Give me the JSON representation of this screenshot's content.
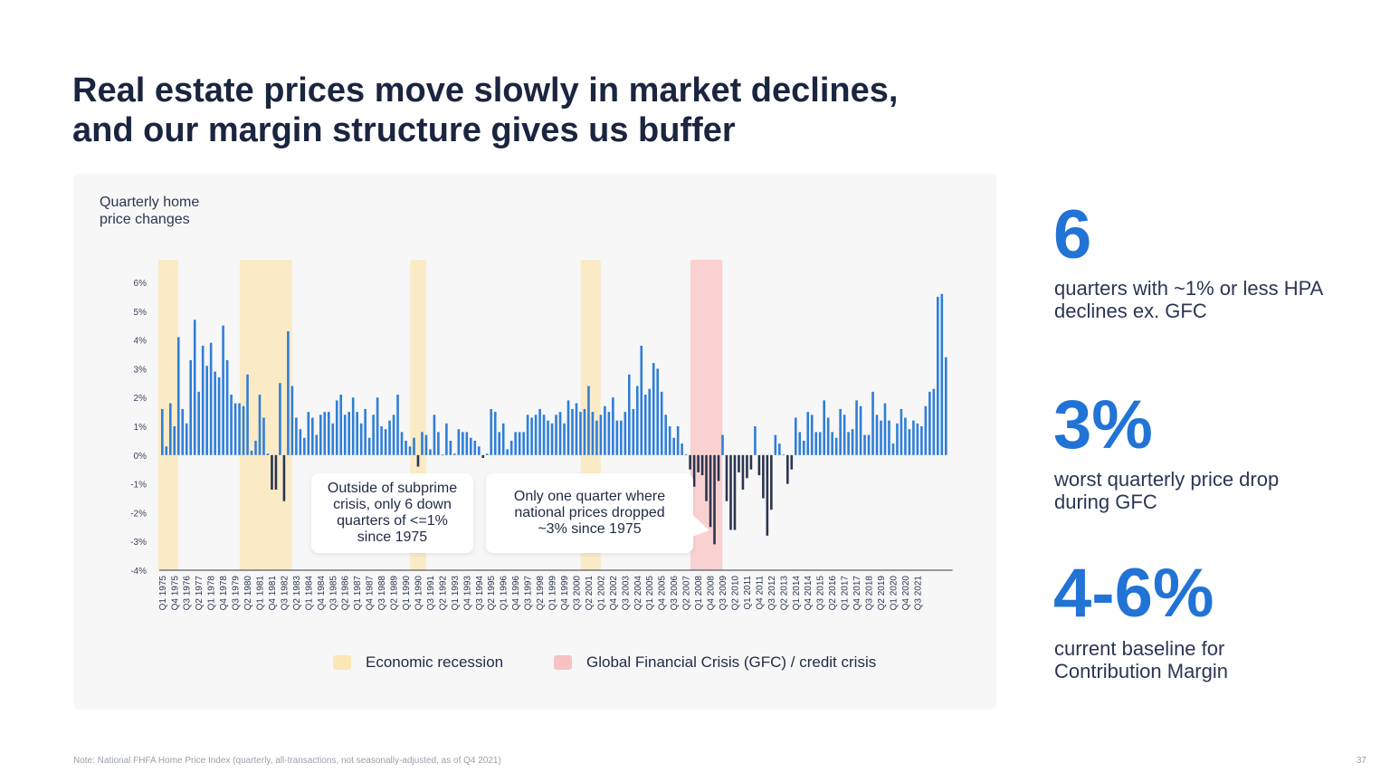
{
  "title": {
    "line1": "Real estate prices move slowly in market declines,",
    "line2": "and our margin structure gives us buffer"
  },
  "chart_title": {
    "line1": "Quarterly home",
    "line2": "price changes"
  },
  "callouts": [
    {
      "lines": [
        "Outside of subprime",
        "crisis, only 6 down",
        "quarters of <=1%",
        "since 1975"
      ]
    },
    {
      "lines": [
        "Only one quarter where",
        "national prices dropped",
        "~3% since 1975"
      ]
    }
  ],
  "legend": [
    {
      "label": "Economic recession",
      "color": "#fbe7b5"
    },
    {
      "label": "Global Financial Crisis (GFC) / credit crisis",
      "color": "#f9c1c1"
    }
  ],
  "stats": [
    {
      "value": "6",
      "lines": [
        "quarters with ~1% or less HPA",
        "declines ex. GFC"
      ]
    },
    {
      "value": "3%",
      "lines": [
        "worst quarterly price drop",
        "during GFC"
      ]
    },
    {
      "value": "4-6%",
      "lines": [
        "current baseline for",
        "Contribution Margin"
      ]
    }
  ],
  "note": "Note: National FHFA Home Price Index (quarterly, all-transactions, not seasonally-adjusted, as of Q4 2021)",
  "page_number": "37",
  "colors": {
    "positive": "#2f7ed8",
    "negative": "#2b3550",
    "recession": "#fbe7b5",
    "gfc": "#f9c1c1",
    "accent": "#2173d6"
  },
  "chart_data": {
    "type": "bar",
    "start_quarter": "Q1 1975",
    "ylim": [
      -4,
      6
    ],
    "yticks": [
      "6%",
      "5%",
      "4%",
      "3%",
      "2%",
      "1%",
      "0%",
      "-1%",
      "-2%",
      "-3%",
      "-4%"
    ],
    "tick_labels": [
      "Q1 1975",
      "Q4 1975",
      "Q3 1976",
      "Q2 1977",
      "Q1 1978",
      "Q4 1978",
      "Q3 1979",
      "Q2 1980",
      "Q1 1981",
      "Q4 1981",
      "Q3 1982",
      "Q2 1983",
      "Q1 1984",
      "Q4 1984",
      "Q3 1985",
      "Q2 1986",
      "Q1 1987",
      "Q4 1987",
      "Q3 1988",
      "Q2 1989",
      "Q1 1990",
      "Q4 1990",
      "Q3 1991",
      "Q2 1992",
      "Q1 1993",
      "Q4 1993",
      "Q3 1994",
      "Q2 1995",
      "Q1 1996",
      "Q4 1996",
      "Q3 1997",
      "Q2 1998",
      "Q1 1999",
      "Q4 1999",
      "Q3 2000",
      "Q2 2001",
      "Q1 2002",
      "Q4 2002",
      "Q3 2003",
      "Q2 2004",
      "Q1 2005",
      "Q4 2005",
      "Q3 2006",
      "Q2 2007",
      "Q1 2008",
      "Q4 2008",
      "Q3 2009",
      "Q2 2010",
      "Q1 2011",
      "Q4 2011",
      "Q3 2012",
      "Q2 2013",
      "Q1 2014",
      "Q4 2014",
      "Q3 2015",
      "Q2 2016",
      "Q1 2017",
      "Q4 2017",
      "Q3 2018",
      "Q2 2019",
      "Q1 2020",
      "Q4 2020",
      "Q3 2021"
    ],
    "shaded_periods": [
      {
        "type": "recession",
        "start": "Q1 1975",
        "end": "Q4 1975"
      },
      {
        "type": "recession",
        "start": "Q1 1980",
        "end": "Q4 1982"
      },
      {
        "type": "recession",
        "start": "Q3 1990",
        "end": "Q1 1991"
      },
      {
        "type": "recession",
        "start": "Q1 2001",
        "end": "Q4 2001"
      },
      {
        "type": "gfc",
        "start": "Q4 2007",
        "end": "Q2 2009"
      }
    ],
    "values": [
      1.6,
      0.3,
      1.8,
      1.0,
      4.1,
      1.6,
      1.1,
      3.3,
      4.7,
      2.2,
      3.8,
      3.1,
      3.9,
      2.9,
      2.7,
      4.5,
      3.3,
      2.1,
      1.8,
      1.8,
      1.7,
      2.8,
      0.15,
      0.5,
      2.1,
      1.3,
      0.05,
      -1.2,
      -1.2,
      2.5,
      -1.6,
      4.3,
      2.4,
      1.3,
      0.9,
      0.6,
      1.5,
      1.3,
      0.7,
      1.4,
      1.5,
      1.5,
      1.1,
      1.9,
      2.1,
      1.4,
      1.5,
      2.0,
      1.5,
      1.1,
      1.6,
      0.6,
      1.4,
      2.0,
      1.0,
      0.9,
      1.2,
      1.4,
      2.1,
      0.8,
      0.5,
      0.3,
      0.6,
      -0.4,
      0.8,
      0.7,
      0.2,
      1.4,
      0.8,
      0.02,
      1.1,
      0.5,
      0.05,
      0.9,
      0.8,
      0.8,
      0.6,
      0.5,
      0.3,
      -0.1,
      0.05,
      1.6,
      1.5,
      0.8,
      1.1,
      0.2,
      0.5,
      0.8,
      0.8,
      0.8,
      1.4,
      1.3,
      1.4,
      1.6,
      1.4,
      1.2,
      1.1,
      1.4,
      1.5,
      1.1,
      1.9,
      1.6,
      1.8,
      1.5,
      1.6,
      2.4,
      1.5,
      1.2,
      1.4,
      1.7,
      1.5,
      2.0,
      1.2,
      1.2,
      1.5,
      2.8,
      1.6,
      2.4,
      3.8,
      2.1,
      2.3,
      3.2,
      3.0,
      2.2,
      1.4,
      1.0,
      0.6,
      1.0,
      0.4,
      0.02,
      -0.5,
      -1.1,
      -0.6,
      -0.7,
      -1.6,
      -2.5,
      -3.1,
      -0.9,
      0.7,
      -1.6,
      -2.6,
      -2.6,
      -0.6,
      -1.2,
      -0.8,
      -0.5,
      1.0,
      -0.7,
      -1.5,
      -2.8,
      -1.9,
      0.7,
      0.4,
      0.02,
      -1.0,
      -0.5,
      1.3,
      0.8,
      0.5,
      1.5,
      1.4,
      0.8,
      0.8,
      1.9,
      1.3,
      0.8,
      0.6,
      1.6,
      1.4,
      0.8,
      0.9,
      1.9,
      1.7,
      0.7,
      0.7,
      2.2,
      1.4,
      1.2,
      1.8,
      1.2,
      0.4,
      1.1,
      1.6,
      1.3,
      0.9,
      1.2,
      1.1,
      1.0,
      1.7,
      2.2,
      2.3,
      5.5,
      5.6,
      3.4
    ]
  }
}
